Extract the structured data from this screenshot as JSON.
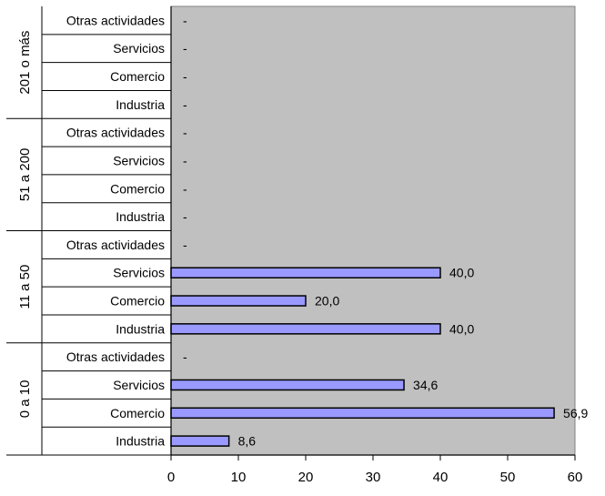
{
  "chart_data": {
    "type": "bar",
    "orientation": "horizontal",
    "groups": [
      {
        "label": "201 o más",
        "categories": [
          "Otras actividades",
          "Servicios",
          "Comercio",
          "Industria"
        ],
        "values": [
          null,
          null,
          null,
          null
        ],
        "value_labels": [
          "-",
          "-",
          "-",
          "-"
        ]
      },
      {
        "label": "51 a 200",
        "categories": [
          "Otras actividades",
          "Servicios",
          "Comercio",
          "Industria"
        ],
        "values": [
          null,
          null,
          null,
          null
        ],
        "value_labels": [
          "-",
          "-",
          "-",
          "-"
        ]
      },
      {
        "label": "11 a 50",
        "categories": [
          "Otras actividades",
          "Servicios",
          "Comercio",
          "Industria"
        ],
        "values": [
          null,
          40.0,
          20.0,
          40.0
        ],
        "value_labels": [
          "-",
          "40,0",
          "20,0",
          "40,0"
        ]
      },
      {
        "label": "0 a 10",
        "categories": [
          "Otras actividades",
          "Servicios",
          "Comercio",
          "Industria"
        ],
        "values": [
          null,
          34.6,
          56.9,
          8.6
        ],
        "value_labels": [
          "-",
          "34,6",
          "56,9",
          "8,6"
        ]
      }
    ],
    "xlim": [
      0,
      60
    ],
    "xticks": [
      0,
      10,
      20,
      30,
      40,
      50,
      60
    ],
    "xtick_labels": [
      "0",
      "10",
      "20",
      "30",
      "40",
      "50",
      "60"
    ],
    "grid": false,
    "legend": "none",
    "colors": {
      "plot_background": "#c0c0c0",
      "bar_fill": "#9999ff",
      "bar_stroke": "#000000",
      "axis": "#000000",
      "plot_border": "#808080"
    }
  }
}
